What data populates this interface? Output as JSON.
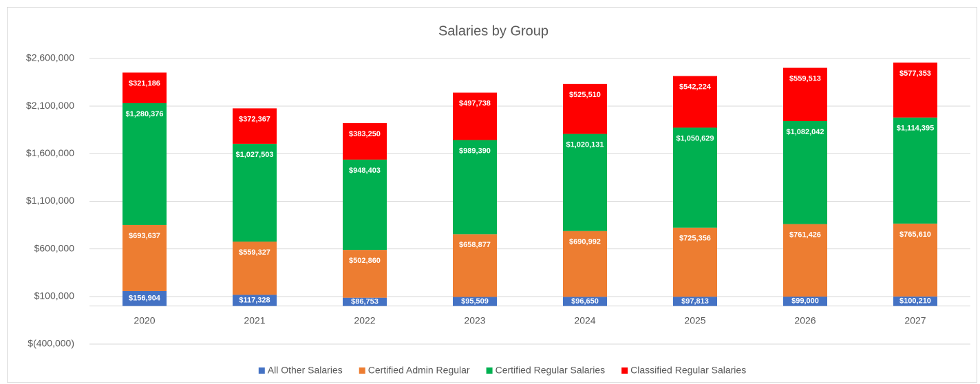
{
  "chart_data": {
    "type": "bar",
    "stacked": true,
    "title": "Salaries by Group",
    "categories": [
      "2020",
      "2021",
      "2022",
      "2023",
      "2024",
      "2025",
      "2026",
      "2027"
    ],
    "series": [
      {
        "name": "All Other Salaries",
        "color": "#4472c4",
        "values": [
          156904,
          117328,
          86753,
          95509,
          96650,
          97813,
          99000,
          100210
        ],
        "value_labels": [
          "$156,904",
          "$117,328",
          "$86,753",
          "$95,509",
          "$96,650",
          "$97,813",
          "$99,000",
          "$100,210"
        ]
      },
      {
        "name": "Certified Admin Regular",
        "color": "#ed7d31",
        "values": [
          693637,
          559327,
          502860,
          658877,
          690992,
          725356,
          761426,
          765610
        ],
        "value_labels": [
          "$693,637",
          "$559,327",
          "$502,860",
          "$658,877",
          "$690,992",
          "$725,356",
          "$761,426",
          "$765,610"
        ]
      },
      {
        "name": "Certified Regular Salaries",
        "color": "#00b050",
        "values": [
          1280376,
          1027503,
          948403,
          989390,
          1020131,
          1050629,
          1082042,
          1114395
        ],
        "value_labels": [
          "$1,280,376",
          "$1,027,503",
          "$948,403",
          "$989,390",
          "$1,020,131",
          "$1,050,629",
          "$1,082,042",
          "$1,114,395"
        ]
      },
      {
        "name": "Classified Regular Salaries",
        "color": "#ff0000",
        "values": [
          321186,
          372367,
          383250,
          497738,
          525510,
          542224,
          559513,
          577353
        ],
        "value_labels": [
          "$321,186",
          "$372,367",
          "$383,250",
          "$497,738",
          "$525,510",
          "$542,224",
          "$559,513",
          "$577,353"
        ]
      }
    ],
    "ylim": [
      -400000,
      2600000
    ],
    "yticks": [
      {
        "value": -400000,
        "label": "$(400,000)"
      },
      {
        "value": 100000,
        "label": "$100,000"
      },
      {
        "value": 600000,
        "label": "$600,000"
      },
      {
        "value": 1100000,
        "label": "$1,100,000"
      },
      {
        "value": 1600000,
        "label": "$1,600,000"
      },
      {
        "value": 2100000,
        "label": "$2,100,000"
      },
      {
        "value": 2600000,
        "label": "$2,600,000"
      }
    ],
    "grid": true,
    "legend": "bottom"
  }
}
